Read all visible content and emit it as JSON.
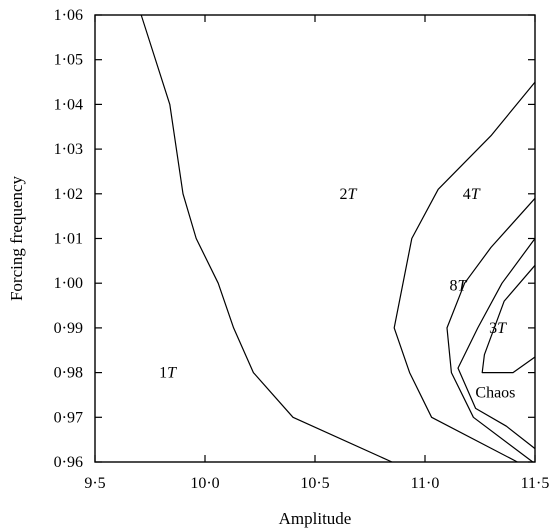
{
  "chart_data": {
    "type": "line",
    "title": "",
    "xlabel": "Amplitude",
    "ylabel": "Forcing frequency",
    "xlim": [
      9.5,
      11.5
    ],
    "ylim": [
      0.96,
      1.06
    ],
    "grid": false,
    "legend": "none",
    "x_ticks": [
      9.5,
      10.0,
      10.5,
      11.0,
      11.5
    ],
    "x_tick_labels": [
      "9·5",
      "10·0",
      "10·5",
      "11·0",
      "11·5"
    ],
    "y_ticks": [
      0.96,
      0.97,
      0.98,
      0.99,
      1.0,
      1.01,
      1.02,
      1.03,
      1.04,
      1.05,
      1.06
    ],
    "y_tick_labels": [
      "0·96",
      "0·97",
      "0·98",
      "0·99",
      "1·00",
      "1·01",
      "1·02",
      "1·03",
      "1·04",
      "1·05",
      "1·06"
    ],
    "series": [
      {
        "points": [
          [
            9.71,
            1.06
          ],
          [
            9.84,
            1.04
          ],
          [
            9.9,
            1.02
          ],
          [
            9.96,
            1.01
          ],
          [
            10.06,
            1.0
          ],
          [
            10.13,
            0.99
          ],
          [
            10.22,
            0.98
          ],
          [
            10.4,
            0.97
          ],
          [
            10.85,
            0.96
          ]
        ]
      },
      {
        "points": [
          [
            11.5,
            1.045
          ],
          [
            11.3,
            1.033
          ],
          [
            11.06,
            1.021
          ],
          [
            10.94,
            1.01
          ],
          [
            10.86,
            0.99
          ],
          [
            10.93,
            0.98
          ],
          [
            11.03,
            0.97
          ],
          [
            11.42,
            0.96
          ]
        ]
      },
      {
        "points": [
          [
            11.5,
            1.019
          ],
          [
            11.3,
            1.008
          ],
          [
            11.18,
            1.0
          ],
          [
            11.1,
            0.99
          ],
          [
            11.12,
            0.98
          ],
          [
            11.22,
            0.97
          ],
          [
            11.49,
            0.96
          ]
        ]
      },
      {
        "points": [
          [
            11.5,
            1.01
          ],
          [
            11.35,
            1.0
          ],
          [
            11.24,
            0.99
          ],
          [
            11.15,
            0.981
          ],
          [
            11.23,
            0.972
          ],
          [
            11.37,
            0.968
          ],
          [
            11.5,
            0.963
          ]
        ]
      },
      {
        "points": [
          [
            11.5,
            1.004
          ],
          [
            11.36,
            0.996
          ],
          [
            11.27,
            0.984
          ],
          [
            11.26,
            0.98
          ],
          [
            11.4,
            0.98
          ],
          [
            11.5,
            0.9835
          ]
        ]
      }
    ],
    "annotations": [
      {
        "text": "1",
        "italic": "T",
        "x": 9.83,
        "y": 0.98
      },
      {
        "text": "2",
        "italic": "T",
        "x": 10.65,
        "y": 1.02
      },
      {
        "text": "4",
        "italic": "T",
        "x": 11.21,
        "y": 1.02
      },
      {
        "text": "8",
        "italic": "T",
        "x": 11.15,
        "y": 0.9995
      },
      {
        "text": "3",
        "italic": "T",
        "x": 11.33,
        "y": 0.99
      },
      {
        "text": "Chaos",
        "italic": "",
        "x": 11.32,
        "y": 0.9755
      }
    ]
  }
}
